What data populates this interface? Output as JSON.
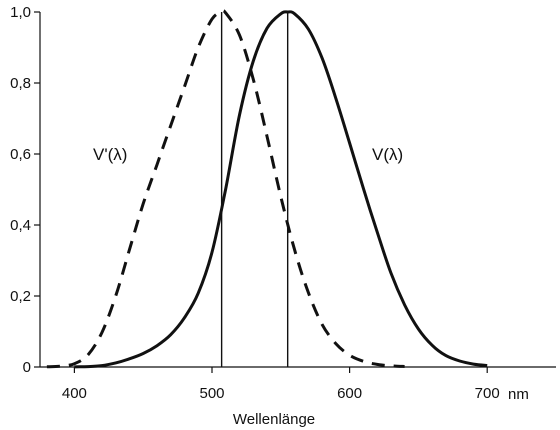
{
  "chart_data": {
    "type": "line",
    "title": "",
    "xlabel": "Wellenlänge",
    "x_unit": "nm",
    "ylabel": "",
    "xlim": [
      375,
      750
    ],
    "ylim": [
      0,
      1.0
    ],
    "x_ticks": [
      400,
      500,
      600,
      700
    ],
    "y_ticks": [
      0,
      0.2,
      0.4,
      0.6,
      0.8,
      1.0
    ],
    "y_tick_labels": [
      "0",
      "0,2",
      "0,4",
      "0,6",
      "0,8",
      "1,0"
    ],
    "grid": false,
    "legend": "none",
    "reference_lines_x": [
      507,
      555
    ],
    "series": [
      {
        "name": "V'(λ)",
        "line_style": "dashed",
        "color": "#111111",
        "x": [
          380,
          390,
          400,
          410,
          420,
          430,
          440,
          450,
          460,
          470,
          480,
          490,
          500,
          507,
          510,
          520,
          530,
          540,
          550,
          560,
          570,
          580,
          590,
          600,
          610,
          620,
          630,
          640
        ],
        "y": [
          0.0006,
          0.0022,
          0.0093,
          0.035,
          0.097,
          0.2,
          0.33,
          0.46,
          0.57,
          0.68,
          0.79,
          0.9,
          0.98,
          1.0,
          0.997,
          0.935,
          0.81,
          0.65,
          0.48,
          0.33,
          0.21,
          0.12,
          0.066,
          0.033,
          0.016,
          0.0074,
          0.0033,
          0.0015
        ]
      },
      {
        "name": "V(λ)",
        "line_style": "solid",
        "color": "#111111",
        "x": [
          400,
          410,
          420,
          430,
          440,
          450,
          460,
          470,
          480,
          490,
          500,
          510,
          520,
          530,
          540,
          550,
          555,
          560,
          570,
          580,
          590,
          600,
          610,
          620,
          630,
          640,
          650,
          660,
          670,
          680,
          690,
          700
        ],
        "y": [
          0.0004,
          0.0012,
          0.004,
          0.0116,
          0.023,
          0.038,
          0.06,
          0.091,
          0.139,
          0.208,
          0.323,
          0.503,
          0.71,
          0.862,
          0.954,
          0.995,
          1.0,
          0.995,
          0.952,
          0.87,
          0.757,
          0.631,
          0.503,
          0.381,
          0.265,
          0.175,
          0.107,
          0.061,
          0.032,
          0.017,
          0.0082,
          0.0041
        ]
      }
    ]
  }
}
